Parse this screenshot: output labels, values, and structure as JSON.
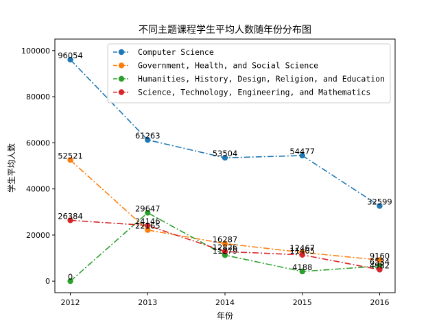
{
  "chart_data": {
    "type": "line",
    "title": "不同主题课程学生平均人数随年份分布图",
    "xlabel": "年份",
    "ylabel": "学生平均人数",
    "x": [
      2012,
      2013,
      2014,
      2015,
      2016
    ],
    "xticks": [
      "2012",
      "2013",
      "2014",
      "2015",
      "2016"
    ],
    "yticks": [
      0,
      20000,
      40000,
      60000,
      80000,
      100000
    ],
    "ylim": [
      -5000,
      105000
    ],
    "legend_position": "top-right",
    "line_style": "dash-dot",
    "series": [
      {
        "name": "Computer Science",
        "color": "#1f77b4",
        "values": [
          96054,
          61263,
          53504,
          54477,
          32599
        ]
      },
      {
        "name": "Government, Health, and Social Science",
        "color": "#ff7f0e",
        "values": [
          52521,
          22165,
          16287,
          12467,
          9160
        ]
      },
      {
        "name": "Humanities, History, Design, Religion, and Education",
        "color": "#2ca02c",
        "values": [
          0,
          29647,
          11279,
          4188,
          6534
        ]
      },
      {
        "name": "Science, Technology, Engineering, and Mathematics",
        "color": "#d62728",
        "values": [
          26384,
          24146,
          12826,
          11405,
          4982
        ]
      }
    ]
  }
}
